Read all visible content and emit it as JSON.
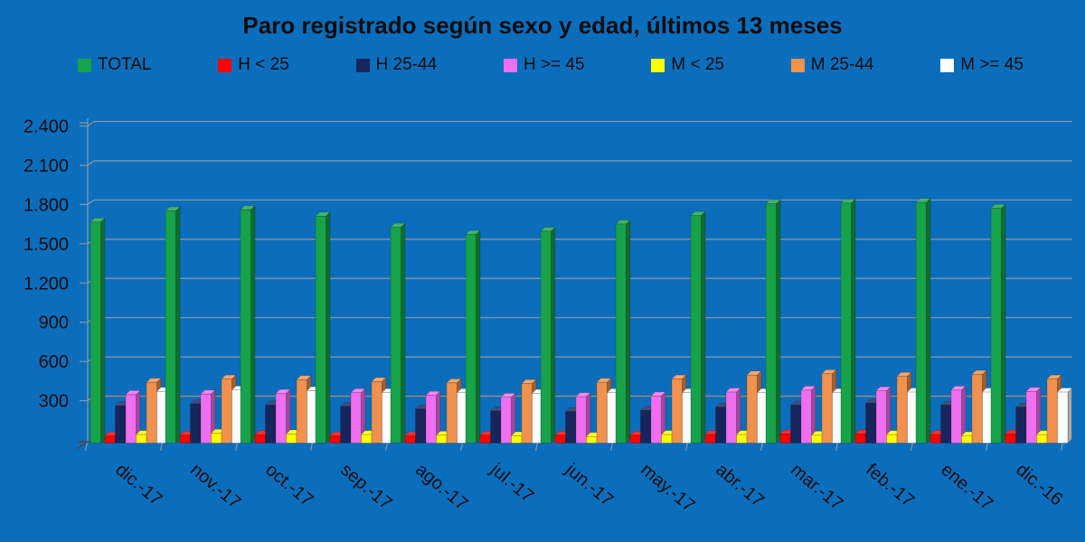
{
  "chart_data": {
    "type": "bar",
    "title": "Paro registrado según sexo y edad, últimos 13 meses",
    "categories": [
      "dic.-17",
      "nov.-17",
      "oct.-17",
      "sep.-17",
      "ago.-17",
      "jul.-17",
      "jun.-17",
      "may.-17",
      "abr.-17",
      "mar.-17",
      "feb.-17",
      "ene.-17",
      "dic.-16"
    ],
    "series": [
      {
        "name": "TOTAL",
        "color": "#17A349",
        "values": [
          1690,
          1775,
          1785,
          1735,
          1650,
          1595,
          1620,
          1675,
          1740,
          1830,
          1835,
          1840,
          1795
        ]
      },
      {
        "name": "H < 25",
        "color": "#FE0000",
        "values": [
          55,
          60,
          65,
          55,
          55,
          60,
          60,
          60,
          65,
          70,
          70,
          65,
          70
        ]
      },
      {
        "name": "H 25-44",
        "color": "#16265C",
        "values": [
          285,
          300,
          290,
          280,
          260,
          245,
          240,
          250,
          275,
          290,
          305,
          290,
          275
        ]
      },
      {
        "name": "H >= 45",
        "color": "#F06EF0",
        "values": [
          370,
          375,
          380,
          385,
          365,
          350,
          355,
          360,
          390,
          405,
          400,
          405,
          395
        ]
      },
      {
        "name": "M < 25",
        "color": "#FFFF00",
        "values": [
          65,
          75,
          70,
          65,
          60,
          55,
          50,
          65,
          65,
          60,
          65,
          55,
          65
        ]
      },
      {
        "name": "M 25-44",
        "color": "#F0914E",
        "values": [
          465,
          490,
          485,
          470,
          460,
          455,
          465,
          490,
          520,
          530,
          510,
          525,
          490
        ]
      },
      {
        "name": "M >= 45",
        "color": "#FFFFFF",
        "values": [
          395,
          405,
          400,
          385,
          385,
          380,
          385,
          385,
          385,
          385,
          390,
          390,
          390
        ]
      }
    ],
    "ylim": [
      0,
      2400
    ],
    "ytick_step": 300,
    "ytick_labels": [
      "300",
      "600",
      "900",
      "1.200",
      "1.500",
      "1.800",
      "2.100",
      "2.400"
    ],
    "grid": true,
    "legend_position": "top",
    "style": {
      "background": "#0B6EBC",
      "text_color": "#0d0d0d",
      "gridline_color": "#8E98A2",
      "lower_gridline_color": "#B98F6C",
      "baseline_color": "#4E4A44"
    }
  }
}
